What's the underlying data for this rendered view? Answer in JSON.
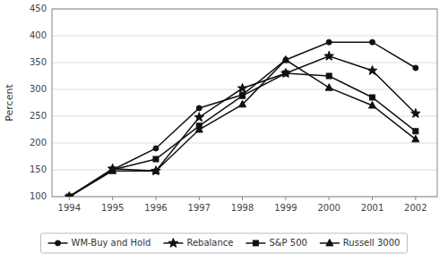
{
  "chart_data": {
    "type": "line",
    "y_label": "Percent",
    "x": [
      1994,
      1995,
      1996,
      1997,
      1998,
      1999,
      2000,
      2001,
      2002
    ],
    "xlim": [
      1993.6,
      2002.5
    ],
    "xticks": [
      1994,
      1995,
      1996,
      1997,
      1998,
      1999,
      2000,
      2001,
      2002
    ],
    "ylim": [
      100,
      450
    ],
    "yticks": [
      100,
      150,
      200,
      250,
      300,
      350,
      400,
      450
    ],
    "grid": true,
    "legend": "bottom",
    "series": [
      {
        "name": "WM-Buy and Hold",
        "color": "#111111",
        "marker": "circle",
        "values": [
          100,
          150,
          190,
          265,
          290,
          355,
          388,
          388,
          340
        ]
      },
      {
        "name": "Rebalance",
        "color": "#111111",
        "marker": "star",
        "values": [
          100,
          152,
          148,
          248,
          302,
          330,
          362,
          335,
          255
        ]
      },
      {
        "name": "S&P 500",
        "color": "#111111",
        "marker": "square",
        "values": [
          100,
          150,
          170,
          232,
          288,
          330,
          325,
          285,
          222
        ]
      },
      {
        "name": "Russell 3000",
        "color": "#111111",
        "marker": "triangle",
        "values": [
          100,
          148,
          148,
          225,
          272,
          355,
          303,
          270,
          207
        ]
      }
    ]
  }
}
